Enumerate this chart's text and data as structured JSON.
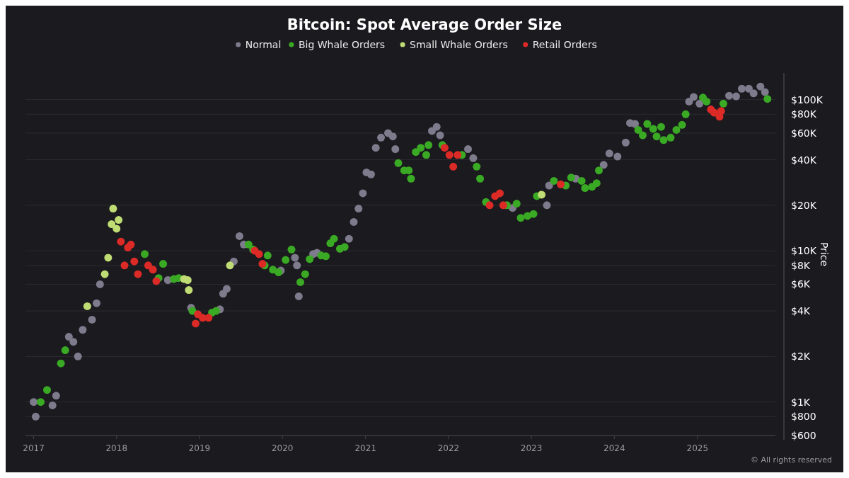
{
  "chart_data": {
    "type": "scatter",
    "title": "Bitcoin: Spot Average Order Size",
    "ylabel": "Price",
    "log": "y",
    "grid": "y",
    "legend": "top",
    "marker": "circle",
    "xlim": [
      "2016-11-26",
      "2025-12-10"
    ],
    "xticks": [
      "2017",
      "2018",
      "2019",
      "2020",
      "2021",
      "2022",
      "2023",
      "2024",
      "2025"
    ],
    "ylim": [
      600,
      150000
    ],
    "yticks": [
      {
        "value": 600,
        "label": "$600"
      },
      {
        "value": 800,
        "label": "$800"
      },
      {
        "value": 1000,
        "label": "$1K"
      },
      {
        "value": 2000,
        "label": "$2K"
      },
      {
        "value": 4000,
        "label": "$4K"
      },
      {
        "value": 6000,
        "label": "$6K"
      },
      {
        "value": 8000,
        "label": "$8K"
      },
      {
        "value": 10000,
        "label": "$10K"
      },
      {
        "value": 20000,
        "label": "$20K"
      },
      {
        "value": 40000,
        "label": "$40K"
      },
      {
        "value": 60000,
        "label": "$60K"
      },
      {
        "value": 80000,
        "label": "$80K"
      },
      {
        "value": 100000,
        "label": "$100K"
      }
    ],
    "annotations": [
      "© All rights reserved"
    ],
    "series": [
      {
        "name": "Normal",
        "color": "#7d7b8c",
        "x": [
          "2017-01-01",
          "2017-01-10",
          "2017-03-25",
          "2017-04-10",
          "2017-06-05",
          "2017-06-25",
          "2017-07-15",
          "2017-08-05",
          "2017-09-15",
          "2017-10-05",
          "2017-10-20",
          "2018-08-15",
          "2018-11-25",
          "2019-04-01",
          "2019-04-15",
          "2019-05-01",
          "2019-06-01",
          "2019-06-26",
          "2019-07-15",
          "2019-12-25",
          "2020-02-25",
          "2020-03-05",
          "2020-03-13",
          "2020-05-15",
          "2020-06-01",
          "2020-10-20",
          "2020-11-10",
          "2020-12-01",
          "2020-12-20",
          "2021-01-05",
          "2021-01-25",
          "2021-02-15",
          "2021-03-10",
          "2021-04-10",
          "2021-05-01",
          "2021-05-12",
          "2021-10-20",
          "2021-11-10",
          "2021-11-25",
          "2022-03-28",
          "2022-04-20",
          "2022-10-10",
          "2023-03-10",
          "2023-03-20",
          "2023-07-15",
          "2023-11-15",
          "2023-12-10",
          "2024-01-15",
          "2024-02-20",
          "2024-03-10",
          "2024-04-01",
          "2024-11-25",
          "2024-12-15",
          "2025-01-10",
          "2025-05-20",
          "2025-06-20",
          "2025-07-15",
          "2025-08-15",
          "2025-09-05",
          "2025-10-05",
          "2025-10-25"
        ],
        "values": [
          1000,
          800,
          950,
          1100,
          2700,
          2500,
          2000,
          3000,
          3500,
          4500,
          6000,
          6400,
          4200,
          4100,
          5200,
          5600,
          8500,
          12500,
          11000,
          7400,
          9000,
          8000,
          5000,
          9500,
          9700,
          12000,
          15500,
          19000,
          24000,
          33000,
          32000,
          48000,
          56000,
          60000,
          57000,
          47000,
          62000,
          66000,
          58000,
          47000,
          41000,
          19200,
          20000,
          27000,
          30000,
          37000,
          44000,
          42000,
          52000,
          70000,
          69000,
          97000,
          104000,
          94000,
          106000,
          105000,
          118000,
          118000,
          110000,
          122000,
          112000
        ]
      },
      {
        "name": "Big Whale Orders",
        "color": "#3aaa24",
        "x": [
          "2017-02-01",
          "2017-03-01",
          "2017-05-01",
          "2017-05-20",
          "2018-05-05",
          "2018-07-05",
          "2018-07-25",
          "2018-09-10",
          "2018-10-01",
          "2018-12-01",
          "2019-02-25",
          "2019-03-15",
          "2019-08-05",
          "2019-08-25",
          "2019-10-15",
          "2019-10-28",
          "2019-11-20",
          "2019-12-15",
          "2020-01-15",
          "2020-02-10",
          "2020-03-20",
          "2020-04-10",
          "2020-04-30",
          "2020-06-20",
          "2020-07-10",
          "2020-07-30",
          "2020-08-15",
          "2020-09-10",
          "2020-10-01",
          "2021-05-25",
          "2021-06-20",
          "2021-07-10",
          "2021-07-20",
          "2021-08-10",
          "2021-09-01",
          "2021-09-25",
          "2021-10-05",
          "2021-12-05",
          "2022-03-01",
          "2022-05-05",
          "2022-05-20",
          "2022-06-15",
          "2022-09-15",
          "2022-10-28",
          "2022-11-15",
          "2022-12-15",
          "2023-01-10",
          "2023-01-25",
          "2023-04-10",
          "2023-06-01",
          "2023-06-25",
          "2023-08-10",
          "2023-08-25",
          "2023-09-25",
          "2023-10-15",
          "2023-10-25",
          "2024-04-15",
          "2024-05-05",
          "2024-05-25",
          "2024-06-20",
          "2024-07-05",
          "2024-07-25",
          "2024-08-05",
          "2024-09-05",
          "2024-09-30",
          "2024-10-25",
          "2024-11-10",
          "2025-01-25",
          "2025-02-10",
          "2025-04-25",
          "2025-11-05"
        ],
        "values": [
          1000,
          1200,
          1800,
          2200,
          9500,
          6600,
          8200,
          6500,
          6600,
          4000,
          3900,
          4000,
          11000,
          10200,
          8000,
          9300,
          7500,
          7200,
          8700,
          10200,
          6200,
          7000,
          8800,
          9300,
          9200,
          11200,
          12000,
          10300,
          10600,
          38000,
          34000,
          34000,
          30000,
          45000,
          48000,
          43000,
          50000,
          50000,
          43000,
          36000,
          30000,
          21000,
          20000,
          20500,
          16500,
          17000,
          17500,
          23000,
          29000,
          27000,
          30500,
          29000,
          26000,
          26500,
          28000,
          34000,
          63000,
          58000,
          69000,
          64000,
          57000,
          66000,
          54000,
          56000,
          63000,
          68000,
          80000,
          103000,
          97000,
          94000,
          101000
        ]
      },
      {
        "name": "Small Whale Orders",
        "color": "#c0dc74",
        "x": [
          "2017-08-25",
          "2017-11-10",
          "2017-11-25",
          "2017-12-10",
          "2017-12-17",
          "2018-01-01",
          "2018-01-10",
          "2018-10-25",
          "2018-11-10",
          "2018-11-15",
          "2019-05-15",
          "2023-02-15"
        ],
        "values": [
          4300,
          7000,
          9000,
          15000,
          19000,
          14000,
          16000,
          6500,
          6400,
          5500,
          8000,
          23500
        ]
      },
      {
        "name": "Retail Orders",
        "color": "#dc2a26",
        "x": [
          "2018-01-20",
          "2018-02-05",
          "2018-02-20",
          "2018-03-05",
          "2018-03-20",
          "2018-04-05",
          "2018-05-20",
          "2018-06-10",
          "2018-06-25",
          "2018-12-15",
          "2018-12-25",
          "2019-01-15",
          "2019-02-10",
          "2019-09-01",
          "2019-09-20",
          "2019-10-05",
          "2021-12-15",
          "2022-01-05",
          "2022-01-22",
          "2022-02-10",
          "2022-07-01",
          "2022-07-25",
          "2022-08-15",
          "2022-08-30",
          "2023-05-10",
          "2025-03-01",
          "2025-03-15",
          "2025-04-08",
          "2025-04-15"
        ],
        "values": [
          11500,
          8000,
          10500,
          11000,
          8500,
          7000,
          8000,
          7500,
          6300,
          3300,
          3800,
          3600,
          3600,
          10000,
          9500,
          8200,
          48000,
          43000,
          36000,
          43000,
          20000,
          23000,
          24000,
          20000,
          27500,
          86000,
          82000,
          77000,
          84000
        ]
      }
    ]
  }
}
